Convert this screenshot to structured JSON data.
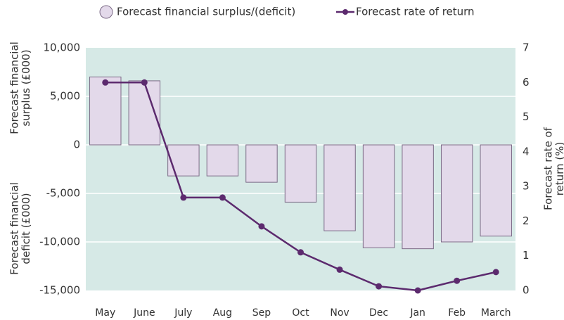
{
  "chart_data": {
    "type": "bar_line",
    "categories": [
      "May",
      "June",
      "July",
      "Aug",
      "Sep",
      "Oct",
      "Nov",
      "Dec",
      "Jan",
      "Feb",
      "March"
    ],
    "series": [
      {
        "name": "Forecast financial surplus/(deficit)",
        "type": "bar",
        "color": "#e3d9ea",
        "stroke": "#7b6a86",
        "values": [
          7000,
          6600,
          -3200,
          -3200,
          -3850,
          -5900,
          -8850,
          -10600,
          -10700,
          -10000,
          -9400
        ]
      },
      {
        "name": "Forecast rate of return",
        "type": "line",
        "axis": "y2",
        "color": "#5c2a6e",
        "values": [
          6.0,
          6.0,
          2.68,
          2.68,
          1.85,
          1.1,
          0.6,
          0.12,
          0,
          0.28,
          0.53
        ]
      }
    ],
    "ylim": [
      -15000,
      10000
    ],
    "yticks": [
      {
        "value": -15000,
        "label": "-15,000"
      },
      {
        "value": -10000,
        "label": "-10,000"
      },
      {
        "value": -5000,
        "label": "-5,000"
      },
      0,
      {
        "value": 5000,
        "label": "5,000"
      },
      {
        "value": 10000,
        "label": "10,000"
      }
    ],
    "y2lim": [
      0,
      7
    ],
    "y2ticks": [
      0,
      1,
      2,
      3,
      4,
      5,
      6,
      7
    ],
    "y_label_top": [
      "Forecast financial",
      "surplus (£000)"
    ],
    "y_label_bottom": [
      "Forecast financial",
      "deficit (£000)"
    ],
    "y2_label": [
      "Forecast rate of",
      "return (%)"
    ],
    "plot_background": "#d6e9e6",
    "grid": true
  }
}
